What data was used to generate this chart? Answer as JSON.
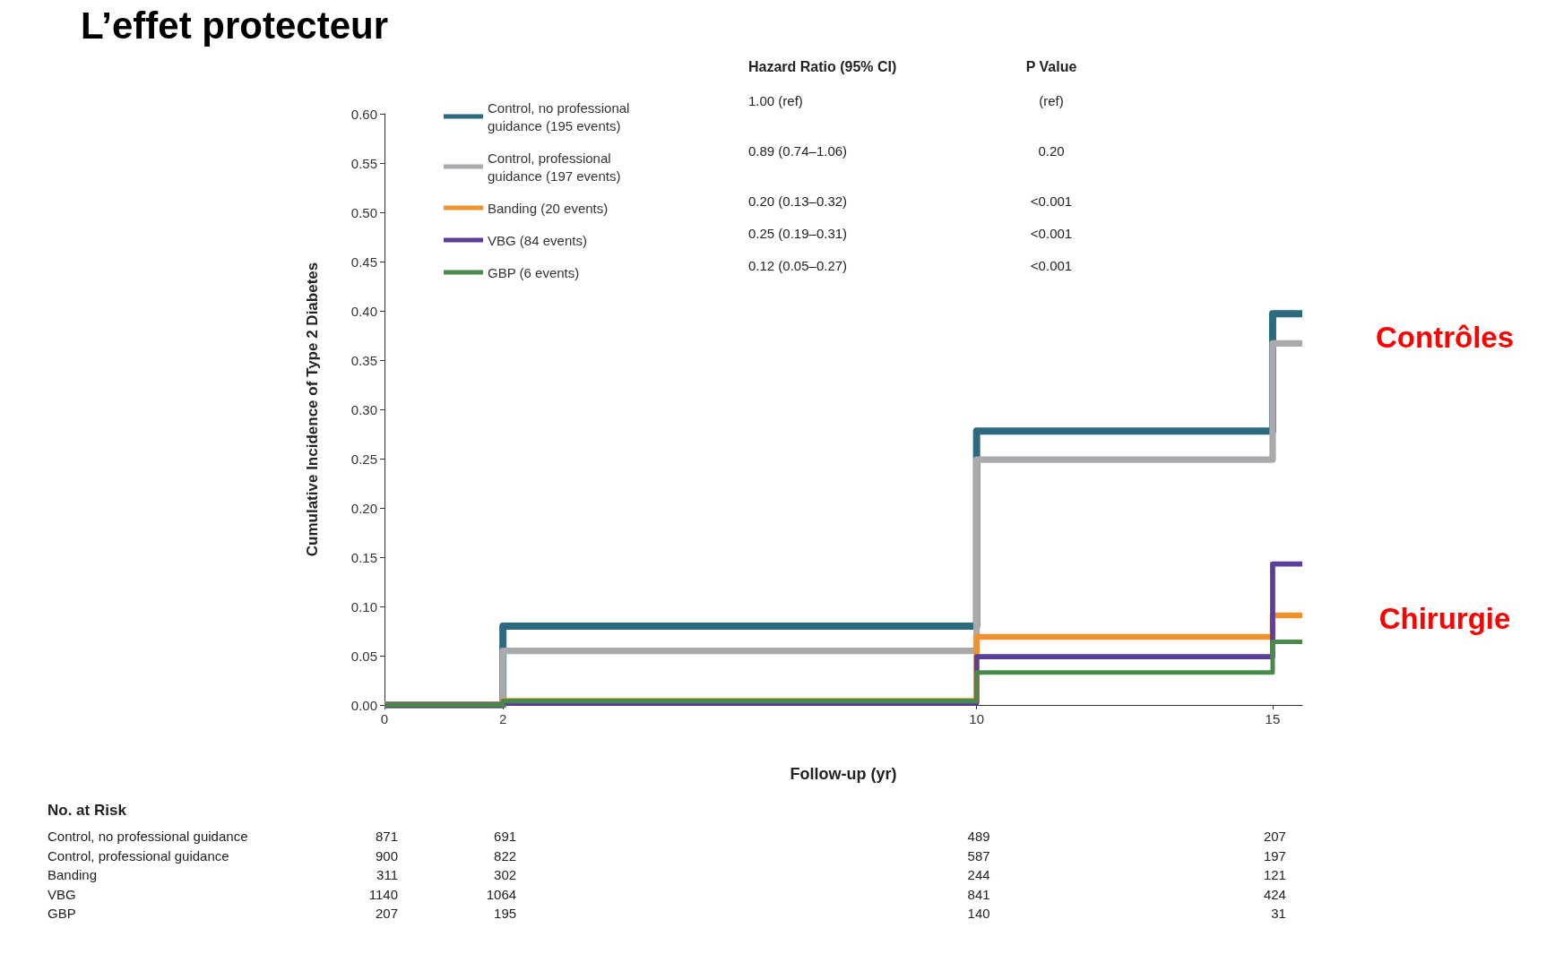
{
  "chart_data": {
    "type": "step",
    "title": "L’effet protecteur",
    "xlabel": "Follow-up (yr)",
    "ylabel": "Cumulative Incidence of Type 2 Diabetes",
    "x": [
      0,
      2,
      10,
      15,
      15.5
    ],
    "series": [
      {
        "name": "Control, no professional guidance (195 events)",
        "color": "#2b6a80",
        "values": [
          0,
          0.08,
          0.278,
          0.397,
          0.397
        ]
      },
      {
        "name": "Control, professional guidance (197 events)",
        "color": "#a8aaad",
        "values": [
          0,
          0.055,
          0.249,
          0.367,
          0.367
        ]
      },
      {
        "name": "Banding (20 events)",
        "color": "#f0922b",
        "values": [
          0,
          0.004,
          0.069,
          0.091,
          0.091
        ]
      },
      {
        "name": "VBG (84 events)",
        "color": "#5b3f99",
        "values": [
          0,
          0.002,
          0.049,
          0.143,
          0.143
        ]
      },
      {
        "name": "GBP (6 events)",
        "color": "#4a8a48",
        "values": [
          0,
          0.004,
          0.033,
          0.064,
          0.064
        ]
      }
    ],
    "xlim": [
      0,
      15.5
    ],
    "xticks": [
      0,
      2,
      10,
      15
    ],
    "ylim": [
      0,
      0.6
    ],
    "yticks": [
      {
        "value": 0,
        "label": "0.00"
      },
      {
        "value": 0.05,
        "label": "0.05"
      },
      {
        "value": 0.1,
        "label": "0.10"
      },
      {
        "value": 0.15,
        "label": "0.15"
      },
      {
        "value": 0.2,
        "label": "0.20"
      },
      {
        "value": 0.25,
        "label": "0.25"
      },
      {
        "value": 0.3,
        "label": "0.30"
      },
      {
        "value": 0.35,
        "label": "0.35"
      },
      {
        "value": 0.4,
        "label": "0.40"
      },
      {
        "value": 0.45,
        "label": "0.45"
      },
      {
        "value": 0.5,
        "label": "0.50"
      },
      {
        "value": 0.55,
        "label": "0.55"
      },
      {
        "value": 0.6,
        "label": "0.60"
      }
    ],
    "grid": false,
    "legend": "top left",
    "marker": "none",
    "line_style": "solid",
    "annotations": [
      "Hazard Ratio (95% CI)",
      "P Value",
      "1.00 (ref)",
      "(ref)",
      "0.89 (0.74–1.06)",
      "0.20",
      "0.20 (0.13–0.32)",
      "<0.001",
      "0.25 (0.19–0.31)",
      "<0.001",
      "0.12 (0.05–0.27)",
      "<0.001",
      "No. at Risk",
      "Control, no professional guidance",
      "871",
      "691",
      "489",
      "207",
      "Control, professional guidance",
      "900",
      "822",
      "587",
      "197",
      "Banding",
      "311",
      "302",
      "244",
      "121",
      "VBG",
      "1140",
      "1064",
      "841",
      "424",
      "GBP",
      "207",
      "195",
      "140",
      "31",
      "Contrôles",
      "Chirurgie"
    ]
  }
}
